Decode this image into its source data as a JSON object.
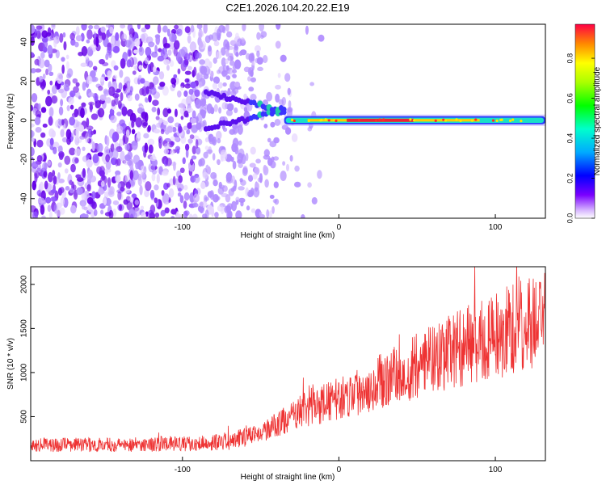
{
  "title": "C2E1.2026.104.20.22.E19",
  "chart_data": [
    {
      "type": "heatmap",
      "title": "C2E1.2026.104.20.22.E19",
      "xlabel": "Height of straight line (km)",
      "ylabel": "Frequency (Hz)",
      "xlim": [
        -197,
        132
      ],
      "ylim": [
        -50,
        49
      ],
      "x_ticks": [
        -100,
        0,
        100
      ],
      "y_ticks": [
        -40,
        -20,
        0,
        20,
        40
      ],
      "colorbar": {
        "label": "Normalized spectral amplitude",
        "range": [
          0,
          0.97
        ],
        "ticks": [
          0.0,
          0.2,
          0.4,
          0.6,
          0.8
        ],
        "tick_labels": [
          "0.0",
          "0.2",
          "0.4",
          "0.6",
          "0.8"
        ]
      },
      "features": {
        "noise_region_x": [
          -197,
          -20
        ],
        "converging_streak": {
          "x": [
            -85,
            -35
          ],
          "y_start": [
            -4,
            14
          ],
          "y_end": [
            5,
            5
          ]
        },
        "signal_band": {
          "x": [
            -35,
            132
          ],
          "y": 0
        }
      },
      "grid": false
    },
    {
      "type": "line",
      "xlabel": "Height of straight line (km)",
      "ylabel": "SNR (10 * v/v)",
      "xlim": [
        -197,
        132
      ],
      "ylim": [
        0,
        2200
      ],
      "x_ticks": [
        -100,
        0,
        100
      ],
      "y_ticks": [
        500,
        1000,
        1500,
        2000
      ],
      "color": "#ee3333",
      "trend": [
        {
          "x": -197,
          "y": 180
        },
        {
          "x": -150,
          "y": 180
        },
        {
          "x": -100,
          "y": 190
        },
        {
          "x": -70,
          "y": 220
        },
        {
          "x": -50,
          "y": 320
        },
        {
          "x": -35,
          "y": 450
        },
        {
          "x": -20,
          "y": 600
        },
        {
          "x": 0,
          "y": 700
        },
        {
          "x": 20,
          "y": 850
        },
        {
          "x": 40,
          "y": 1000
        },
        {
          "x": 60,
          "y": 1150
        },
        {
          "x": 80,
          "y": 1300
        },
        {
          "x": 100,
          "y": 1400
        },
        {
          "x": 115,
          "y": 1550
        },
        {
          "x": 132,
          "y": 1600
        }
      ],
      "grid": false
    }
  ]
}
